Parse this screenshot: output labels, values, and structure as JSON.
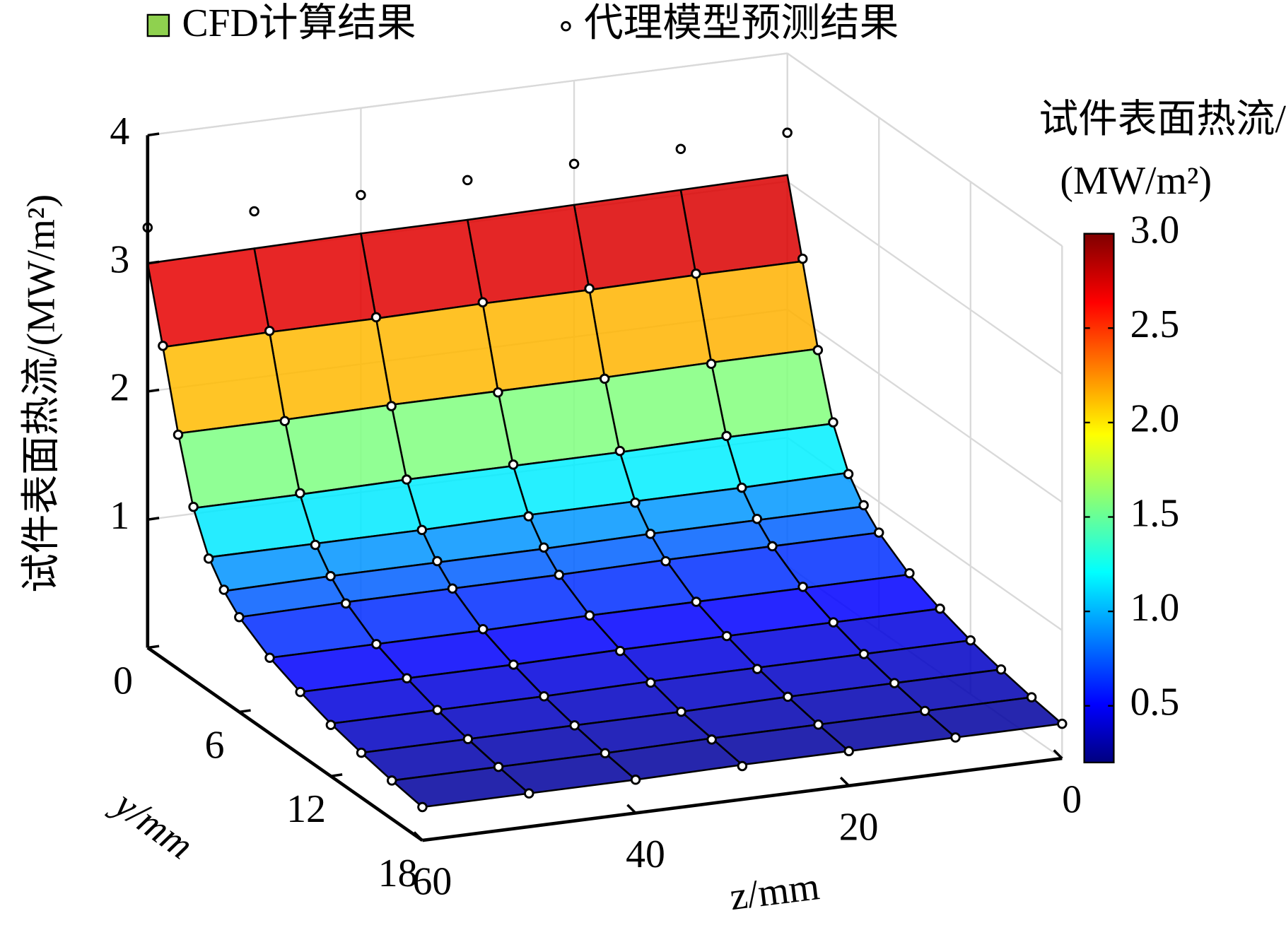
{
  "chart_data": {
    "type": "surface",
    "vlabel": "试件表面热流/(MW/m²)",
    "ylabel": "y/mm",
    "zlabel": "z/mm",
    "y": [
      0,
      1,
      2,
      3,
      4,
      5,
      6,
      8,
      10,
      12,
      14,
      16,
      18
    ],
    "z": [
      0,
      10,
      20,
      30,
      40,
      50,
      60
    ],
    "vlim": [
      0,
      4
    ],
    "vticks": [
      1,
      2,
      3,
      4
    ],
    "ylim": [
      0,
      18
    ],
    "yticks": [
      0,
      6,
      12,
      18
    ],
    "zlim": [
      0,
      60
    ],
    "zticks": [
      0,
      20,
      40,
      60
    ],
    "grid": true,
    "series": [
      {
        "name": "CFD计算结果",
        "color": "#8fd14f",
        "values": [
          [
            3.05,
            3.04,
            3.03,
            3.02,
            3.02,
            3.01,
            3.0
          ],
          [
            2.46,
            2.46,
            2.45,
            2.45,
            2.44,
            2.44,
            2.43
          ],
          [
            1.86,
            1.86,
            1.85,
            1.85,
            1.85,
            1.84,
            1.84
          ],
          [
            1.36,
            1.36,
            1.35,
            1.35,
            1.35,
            1.34,
            1.34
          ],
          [
            1.06,
            1.05,
            1.05,
            1.05,
            1.04,
            1.04,
            1.04
          ],
          [
            0.88,
            0.88,
            0.88,
            0.87,
            0.87,
            0.87,
            0.86
          ],
          [
            0.76,
            0.76,
            0.76,
            0.75,
            0.75,
            0.75,
            0.74
          ],
          [
            0.6,
            0.6,
            0.6,
            0.6,
            0.59,
            0.59,
            0.59
          ],
          [
            0.5,
            0.5,
            0.5,
            0.5,
            0.49,
            0.49,
            0.49
          ],
          [
            0.42,
            0.42,
            0.42,
            0.42,
            0.41,
            0.41,
            0.41
          ],
          [
            0.36,
            0.36,
            0.36,
            0.35,
            0.35,
            0.35,
            0.35
          ],
          [
            0.31,
            0.31,
            0.31,
            0.31,
            0.3,
            0.3,
            0.3
          ],
          [
            0.27,
            0.27,
            0.27,
            0.27,
            0.26,
            0.26,
            0.26
          ]
        ]
      },
      {
        "name": "代理模型预测结果",
        "color": "#ffffff",
        "values": [
          [
            3.38,
            3.36,
            3.35,
            3.33,
            3.32,
            3.3,
            3.28
          ],
          [
            2.48,
            2.47,
            2.46,
            2.46,
            2.45,
            2.45,
            2.44
          ],
          [
            1.85,
            1.85,
            1.84,
            1.84,
            1.84,
            1.83,
            1.83
          ],
          [
            1.37,
            1.37,
            1.36,
            1.36,
            1.35,
            1.35,
            1.35
          ],
          [
            1.05,
            1.05,
            1.04,
            1.04,
            1.04,
            1.03,
            1.03
          ],
          [
            0.89,
            0.89,
            0.88,
            0.88,
            0.88,
            0.87,
            0.87
          ],
          [
            0.76,
            0.76,
            0.75,
            0.75,
            0.75,
            0.74,
            0.74
          ],
          [
            0.61,
            0.61,
            0.6,
            0.6,
            0.6,
            0.59,
            0.59
          ],
          [
            0.5,
            0.5,
            0.5,
            0.49,
            0.49,
            0.49,
            0.49
          ],
          [
            0.42,
            0.42,
            0.41,
            0.41,
            0.41,
            0.41,
            0.4
          ],
          [
            0.36,
            0.36,
            0.36,
            0.35,
            0.35,
            0.35,
            0.35
          ],
          [
            0.31,
            0.31,
            0.31,
            0.3,
            0.3,
            0.3,
            0.3
          ],
          [
            0.27,
            0.27,
            0.27,
            0.26,
            0.26,
            0.26,
            0.26
          ]
        ]
      }
    ],
    "colorbar": {
      "title": [
        "试件表面热流/",
        "(MW/m²)"
      ],
      "colormap": "jet",
      "lim": [
        0.2,
        3.0
      ],
      "ticks": [
        0.5,
        {
          "value": 1,
          "label": "1.0"
        },
        1.5,
        {
          "value": 2,
          "label": "2.0"
        },
        2.5,
        {
          "value": 3,
          "label": "3.0"
        }
      ]
    }
  }
}
